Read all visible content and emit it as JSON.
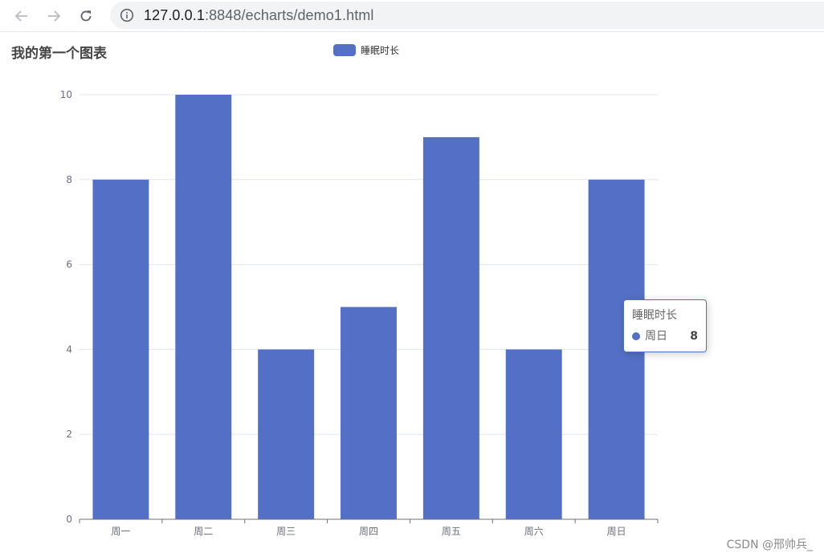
{
  "browser": {
    "url_host": "127.0.0.1",
    "url_port": ":8848",
    "url_path": "/echarts/demo1.html"
  },
  "tooltip": {
    "series_name": "睡眠时长",
    "category": "周日",
    "value": "8"
  },
  "watermark": "CSDN @邢帅兵_",
  "colors": {
    "series": "#5470c6",
    "axis": "#6e7079",
    "grid": "#e0e6f1",
    "title": "#464646"
  },
  "chart_data": {
    "type": "bar",
    "title": "我的第一个图表",
    "legend": [
      "睡眠时长"
    ],
    "legend_position": "top-center",
    "categories": [
      "周一",
      "周二",
      "周三",
      "周四",
      "周五",
      "周六",
      "周日"
    ],
    "series": [
      {
        "name": "睡眠时长",
        "values": [
          8,
          10,
          4,
          5,
          9,
          4,
          8
        ]
      }
    ],
    "y_ticks": [
      0,
      2,
      4,
      6,
      8,
      10
    ],
    "ylim": [
      0,
      10
    ],
    "grid": true
  }
}
